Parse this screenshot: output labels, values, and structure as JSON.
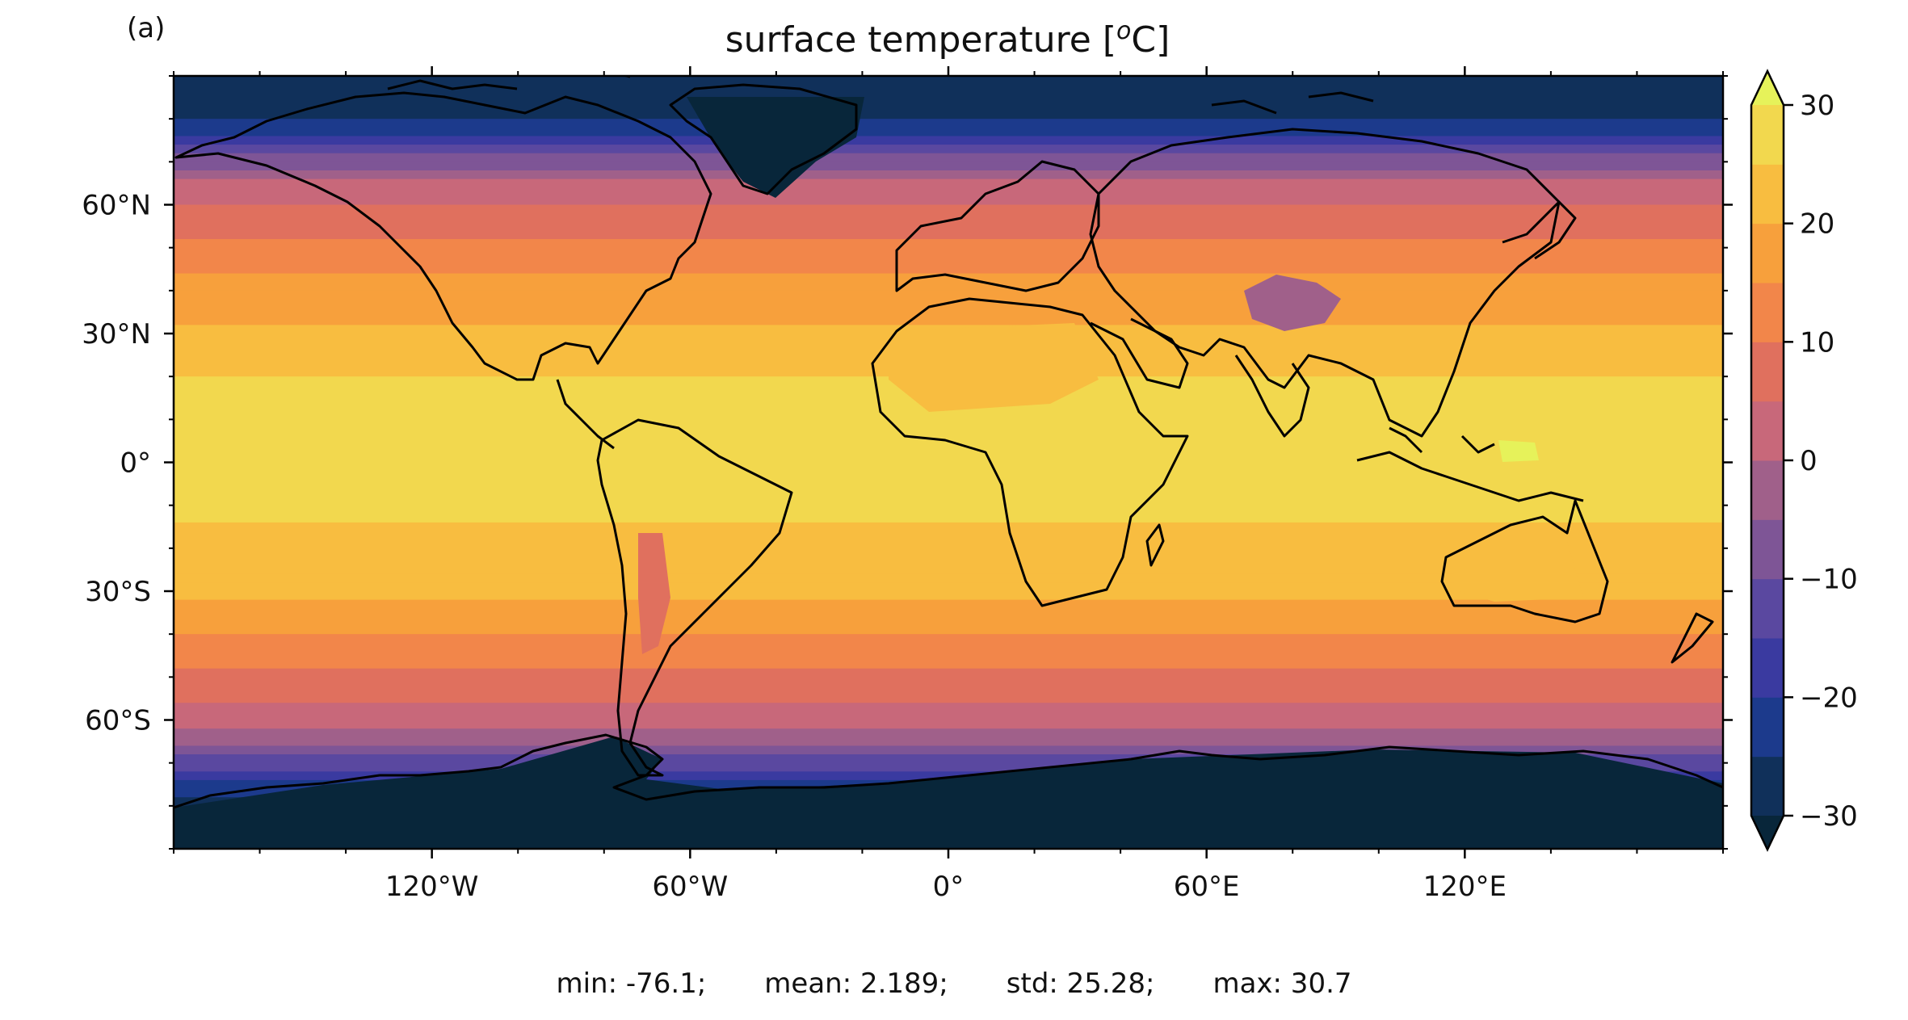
{
  "panel_label": "(a)",
  "title": "surface temperature [",
  "title_sup": "o",
  "title_end": "C]",
  "chart_data": {
    "type": "heatmap",
    "projection": "equirectangular",
    "variable": "surface temperature",
    "units": "°C",
    "xlim": [
      -180,
      180
    ],
    "ylim": [
      -90,
      90
    ],
    "x_ticks": [
      -120,
      -60,
      0,
      60,
      120
    ],
    "x_tick_labels": [
      "120°W",
      "60°W",
      "0°",
      "60°E",
      "120°E"
    ],
    "y_ticks": [
      60,
      30,
      0,
      -30,
      -60
    ],
    "y_tick_labels": [
      "60°N",
      "30°N",
      "0°",
      "30°S",
      "60°S"
    ],
    "colorbar": {
      "ticks": [
        30,
        20,
        10,
        0,
        -10,
        -20,
        -30
      ],
      "tick_labels": [
        "30",
        "20",
        "10",
        "0",
        "−10",
        "−20",
        "−30"
      ],
      "levels": [
        -30,
        -25,
        -20,
        -15,
        -10,
        -5,
        0,
        5,
        10,
        15,
        20,
        25,
        30
      ],
      "extend": "both",
      "colors": [
        "#08263a",
        "#10305a",
        "#1c3a8c",
        "#3a3aa0",
        "#5a48a0",
        "#7e5596",
        "#a0608a",
        "#c8687a",
        "#e0705e",
        "#f2864a",
        "#f7a03c",
        "#f8bd40",
        "#f2d84e",
        "#e6f25a"
      ]
    },
    "zonal_profile_ocean": [
      {
        "lat": 90,
        "value": -30
      },
      {
        "lat": 80,
        "value": -25
      },
      {
        "lat": 75,
        "value": -17
      },
      {
        "lat": 70,
        "value": -8
      },
      {
        "lat": 65,
        "value": 0
      },
      {
        "lat": 60,
        "value": 5
      },
      {
        "lat": 50,
        "value": 11
      },
      {
        "lat": 40,
        "value": 17
      },
      {
        "lat": 30,
        "value": 21
      },
      {
        "lat": 20,
        "value": 25
      },
      {
        "lat": 0,
        "value": 27
      },
      {
        "lat": -20,
        "value": 24
      },
      {
        "lat": -30,
        "value": 21
      },
      {
        "lat": -40,
        "value": 15
      },
      {
        "lat": -50,
        "value": 8
      },
      {
        "lat": -60,
        "value": 2
      },
      {
        "lat": -65,
        "value": -3
      },
      {
        "lat": -70,
        "value": -12
      },
      {
        "lat": -75,
        "value": -22
      },
      {
        "lat": -90,
        "value": -40
      }
    ],
    "regions": [
      {
        "name": "Greenland ice sheet",
        "value": -32
      },
      {
        "name": "Antarctica",
        "value": -45
      },
      {
        "name": "Tibetan Plateau",
        "value": -3
      },
      {
        "name": "Andes",
        "value": 8
      },
      {
        "name": "Maritime Continent warm pool",
        "value": 30.5
      },
      {
        "name": "Sahara",
        "value": 22
      },
      {
        "name": "Australia interior",
        "value": 22
      }
    ]
  },
  "stats": {
    "min": "min: -76.1;",
    "mean": "mean: 2.189;",
    "std": "std: 25.28;",
    "max": "max: 30.7"
  }
}
